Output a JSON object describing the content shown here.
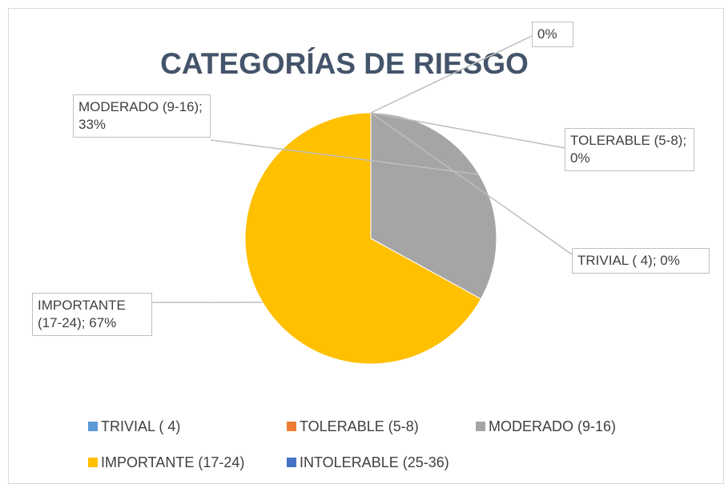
{
  "chart_data": {
    "type": "pie",
    "title": "CATEGORÍAS DE RIESGO",
    "categories": [
      "TRIVIAL ( 4)",
      "TOLERABLE (5-8)",
      "MODERADO (9-16)",
      "IMPORTANTE (17-24)",
      "INTOLERABLE (25-36)"
    ],
    "values": [
      0,
      0,
      33,
      67,
      0
    ],
    "value_labels": [
      "TRIVIAL ( 4); 0%",
      "TOLERABLE (5-8); 0%",
      "MODERADO (9-16); 33%",
      "IMPORTANTE (17-24); 67%",
      "0%"
    ],
    "colors": [
      "#5b9bd5",
      "#ed7d31",
      "#a5a5a5",
      "#ffc000",
      "#4472c4"
    ],
    "legend": "bottom"
  }
}
